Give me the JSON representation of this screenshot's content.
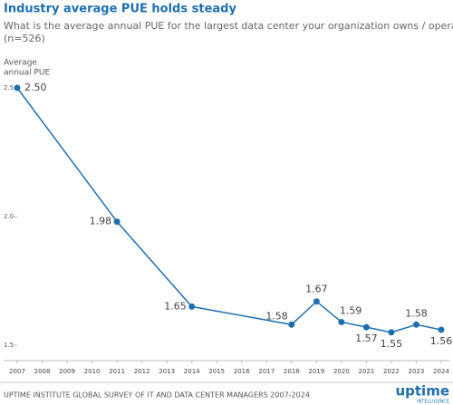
{
  "chart_data": {
    "type": "line",
    "title": "Industry average PUE holds steady",
    "subtitle": [
      "What is the average annual PUE for the largest data center your organization owns / operates?",
      "(n=526)"
    ],
    "y_label": [
      "Average",
      "annual PUE"
    ],
    "x": [
      2007,
      2011,
      2014,
      2018,
      2019,
      2020,
      2021,
      2022,
      2023,
      2024
    ],
    "series": [
      {
        "color": "#1f6fad",
        "values": [
          2.5,
          1.98,
          1.65,
          1.58,
          1.67,
          1.59,
          1.57,
          1.55,
          1.58,
          1.56
        ],
        "value_labels": [
          "2.50",
          "1.98",
          "1.65",
          "1.58",
          "1.67",
          "1.59",
          "1.57",
          "1.55",
          "1.58",
          "1.56"
        ]
      }
    ],
    "xlim": [
      2007,
      2024
    ],
    "xticks": [
      2007,
      2008,
      2009,
      2010,
      2011,
      2012,
      2013,
      2014,
      2015,
      2016,
      2017,
      2018,
      2019,
      2020,
      2021,
      2022,
      2023,
      2024
    ],
    "ylim": [
      1.44,
      2.52
    ],
    "yticks": [
      {
        "value": 1.5,
        "label": "1.5"
      },
      {
        "value": 2,
        "label": "2.0"
      },
      {
        "value": 2.5,
        "label": "2.5"
      }
    ],
    "grid": false,
    "source": "UPTIME INSTITUTE GLOBAL SURVEY OF IT AND DATA CENTER MANAGERS 2007-2024",
    "brand": "uptime",
    "brand_sub": "INTELLIGENCE"
  }
}
